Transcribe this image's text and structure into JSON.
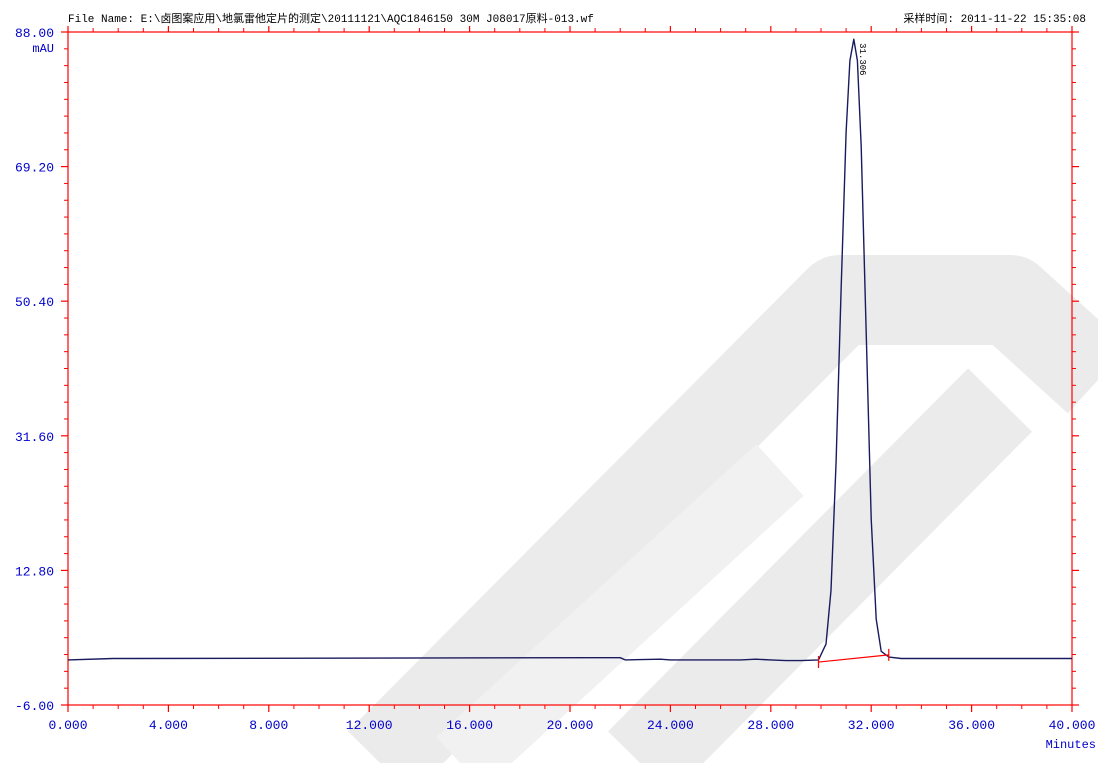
{
  "header": {
    "file_name": "File Name: E:\\卤图案应用\\地氯雷他定片的测定\\20111121\\AQC1846150 30M J08017原料-013.wf",
    "acquisition_time": "采样时间: 2011-11-22 15:35:08"
  },
  "colors": {
    "axis": "#ff0000",
    "tick_label": "#0000cc",
    "trace": "#1a1a5e",
    "baseline": "#ff0000",
    "watermark": "#e6e6e6"
  },
  "chart_data": {
    "type": "line",
    "title": "",
    "xlabel": "Minutes",
    "ylabel": "mAU",
    "xlim": [
      0,
      40
    ],
    "ylim": [
      -6,
      88
    ],
    "x_ticks": [
      "0.000",
      "4.000",
      "8.000",
      "12.000",
      "16.000",
      "20.000",
      "24.000",
      "28.000",
      "32.000",
      "36.000",
      "40.000"
    ],
    "y_ticks": [
      "-6.00",
      "12.80",
      "31.60",
      "50.40",
      "69.20",
      "88.00"
    ],
    "peak_label": "31.306",
    "series": [
      {
        "x": [
          0,
          1.8,
          2.5,
          20.8,
          22.0,
          22.2,
          23.6,
          24.0,
          26.8,
          27.4,
          28.0,
          28.6,
          29.2,
          29.9,
          30.2,
          30.4,
          30.6,
          30.8,
          31.0,
          31.15,
          31.306,
          31.45,
          31.6,
          31.8,
          32.0,
          32.2,
          32.4,
          32.7,
          33.2,
          35.0,
          38.0,
          40.0
        ],
        "y": [
          0.3,
          0.5,
          0.5,
          0.6,
          0.6,
          0.3,
          0.4,
          0.3,
          0.3,
          0.4,
          0.3,
          0.2,
          0.2,
          0.3,
          2.5,
          10.0,
          28.0,
          52.0,
          74.0,
          84.0,
          87.0,
          84.0,
          72.0,
          46.0,
          20.0,
          6.0,
          1.5,
          0.7,
          0.5,
          0.5,
          0.5,
          0.5
        ]
      }
    ],
    "baseline_segment": {
      "x": [
        29.9,
        32.7
      ],
      "y": [
        0.0,
        1.0
      ]
    }
  }
}
